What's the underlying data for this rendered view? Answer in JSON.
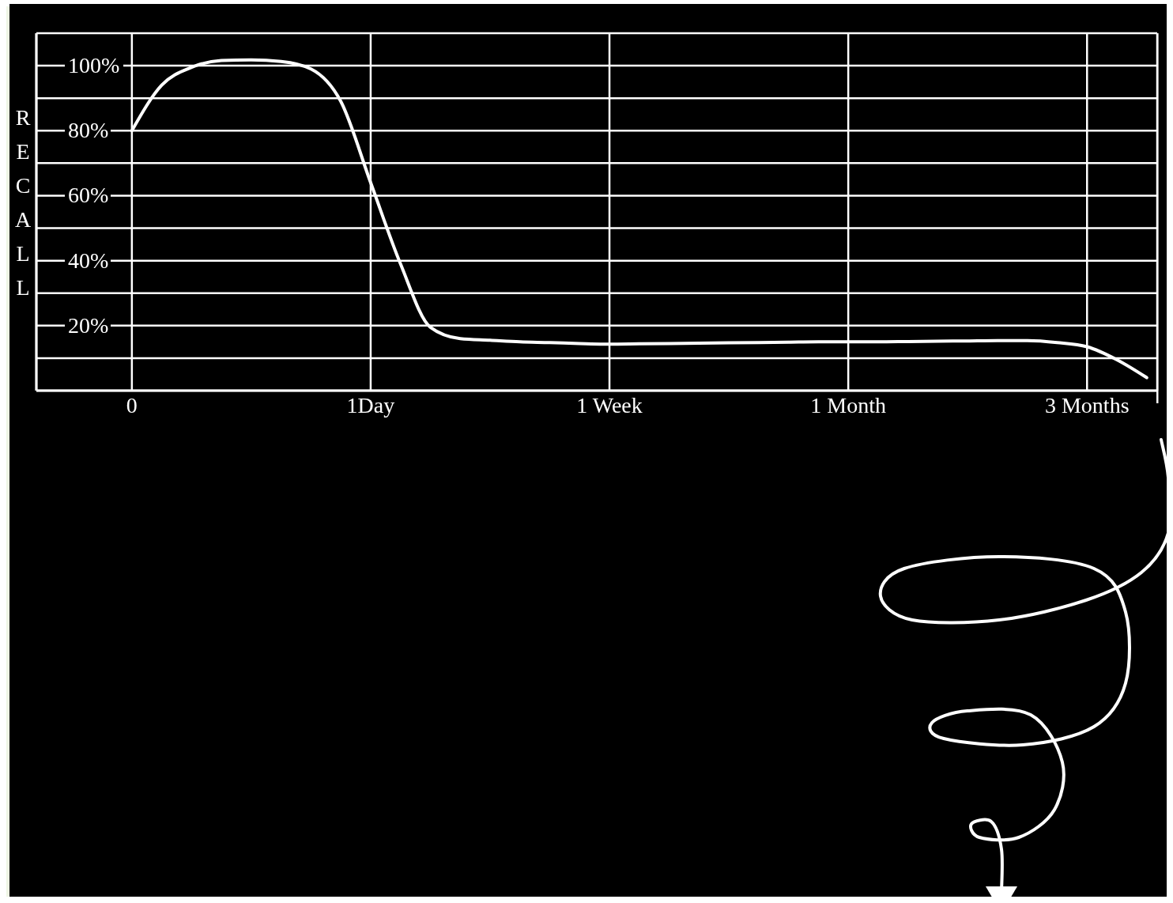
{
  "chart_data": {
    "type": "line",
    "ylabel": "RECALL",
    "categories": [
      "0",
      null,
      null,
      null,
      null,
      null,
      null,
      null,
      "1Day",
      null,
      null,
      null,
      null,
      null,
      null,
      null,
      "1 Week",
      null,
      null,
      null,
      null,
      null,
      null,
      null,
      "1 Month",
      null,
      null,
      null,
      null,
      null,
      null,
      null,
      "3 Months",
      null,
      null
    ],
    "series": [
      {
        "color": "#ffffff",
        "values": [
          80,
          94,
          99.5,
          101.6,
          101.8,
          101.3,
          99,
          89,
          64,
          39,
          19.5,
          16,
          15.5,
          15,
          14.8,
          14.5,
          14.3,
          14.4,
          14.5,
          14.6,
          14.7,
          14.8,
          14.9,
          15,
          15,
          15,
          15.1,
          15.2,
          15.3,
          15.4,
          15.4,
          14.8,
          13.5,
          9.5,
          4
        ]
      }
    ],
    "ylim": [
      0,
      110
    ],
    "yticks": [
      {
        "value": 10,
        "label": null
      },
      {
        "value": 20,
        "label": "20%"
      },
      {
        "value": 30,
        "label": null
      },
      {
        "value": 40,
        "label": "40%"
      },
      {
        "value": 50,
        "label": null
      },
      {
        "value": 60,
        "label": "60%"
      },
      {
        "value": 70,
        "label": null
      },
      {
        "value": 80,
        "label": "80%"
      },
      {
        "value": 90,
        "label": null
      },
      {
        "value": 100,
        "label": "100%"
      },
      {
        "value": 110,
        "label": null
      }
    ],
    "grid": true,
    "marker": "none",
    "line_style": "solid"
  }
}
